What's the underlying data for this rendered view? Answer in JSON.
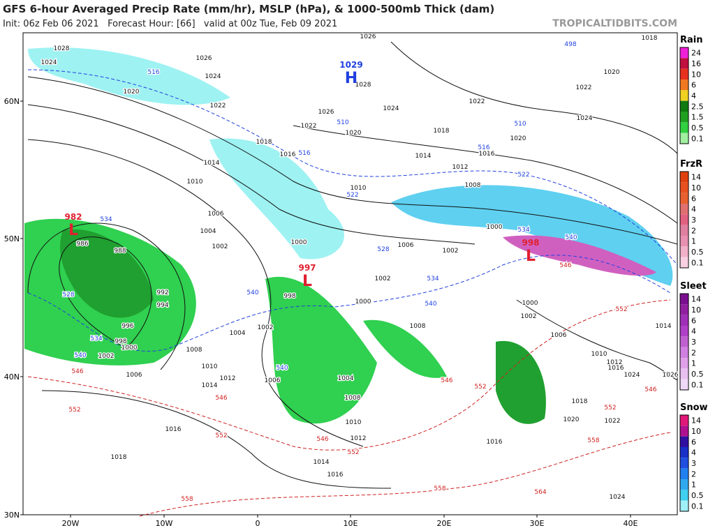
{
  "header": {
    "title": "GFS 6-hour Averaged Precip Rate (mm/hr), MSLP (hPa), & 1000-500mb Thick (dam)",
    "init": "Init: 06z Feb 06 2021   Forecast Hour: [66]   valid at 00z Tue, Feb 09 2021",
    "source": "TROPICALTIDBITS.COM"
  },
  "map": {
    "lat_labels": [
      "60N",
      "50N",
      "40N",
      "30N"
    ],
    "lon_labels": [
      "20W",
      "10W",
      "0",
      "10E",
      "20E",
      "30E",
      "40E"
    ],
    "pressure_centers": [
      {
        "value": 1029,
        "letter": "H"
      },
      {
        "value": 982,
        "letter": "L"
      },
      {
        "value": 997,
        "letter": "L"
      },
      {
        "value": 998,
        "letter": "L"
      }
    ],
    "mslp_labels": [
      1028,
      1024,
      1026,
      1024,
      1020,
      1022,
      1018,
      1016,
      1014,
      1010,
      1006,
      1004,
      1002,
      1000,
      1002,
      1000,
      998,
      1002,
      1004,
      1008,
      1010,
      1012,
      1014,
      1006,
      1004,
      1008,
      1010,
      1012,
      1014,
      1016,
      1016,
      1018,
      1006,
      1002,
      1000,
      998,
      996,
      994,
      992,
      988,
      986,
      1026,
      1028,
      1026,
      1024,
      1022,
      1020,
      1014,
      1012,
      1008,
      1000,
      1018,
      1016,
      1020,
      1022,
      1024,
      1022,
      1020,
      1018,
      1010,
      1006,
      1002,
      1006,
      1002,
      1000,
      1010,
      1012,
      1016,
      1024,
      1026,
      1014,
      1018,
      1020,
      1022,
      1024,
      1016,
      1008
    ],
    "thickness_labels_cold": [
      498,
      516,
      510,
      516,
      516,
      510,
      522,
      522,
      528,
      534,
      534,
      534,
      540,
      528,
      540,
      540,
      540,
      534,
      540
    ],
    "thickness_labels_warm": [
      546,
      552,
      546,
      552,
      546,
      552,
      558,
      558,
      564,
      546,
      552,
      546,
      552,
      558,
      552,
      546
    ]
  },
  "legends": [
    {
      "title": "Rain",
      "labels": [
        24,
        16,
        10,
        6,
        4,
        2.5,
        1.5,
        0.5,
        0.1
      ],
      "colors": [
        "#f020d8",
        "#c01040",
        "#e83020",
        "#f07820",
        "#f0d020",
        "#107a10",
        "#20a020",
        "#30d040",
        "#a0f0a0"
      ]
    },
    {
      "title": "FrzR",
      "labels": [
        14,
        10,
        6,
        4,
        3,
        2,
        1,
        0.5,
        0.1
      ],
      "colors": [
        "#e04010",
        "#e85020",
        "#e86030",
        "#e07070",
        "#e06080",
        "#e080a0",
        "#e890b0",
        "#f0b0c8",
        "#f8d0e0"
      ]
    },
    {
      "title": "Sleet",
      "labels": [
        14,
        10,
        6,
        4,
        3,
        2,
        1,
        0.5,
        0.1
      ],
      "colors": [
        "#7a1090",
        "#9020a0",
        "#a030b8",
        "#b040c8",
        "#c060d0",
        "#d080e0",
        "#e0a0e8",
        "#e8c0f0",
        "#f0d8f8"
      ]
    },
    {
      "title": "Snow",
      "labels": [
        14,
        10,
        6,
        4,
        3,
        2,
        1,
        0.5,
        0.1
      ],
      "colors": [
        "#e01878",
        "#b01090",
        "#3010a0",
        "#1830c8",
        "#2050e0",
        "#2080f0",
        "#30a8f0",
        "#40d0f0",
        "#a0f0f8"
      ]
    }
  ]
}
